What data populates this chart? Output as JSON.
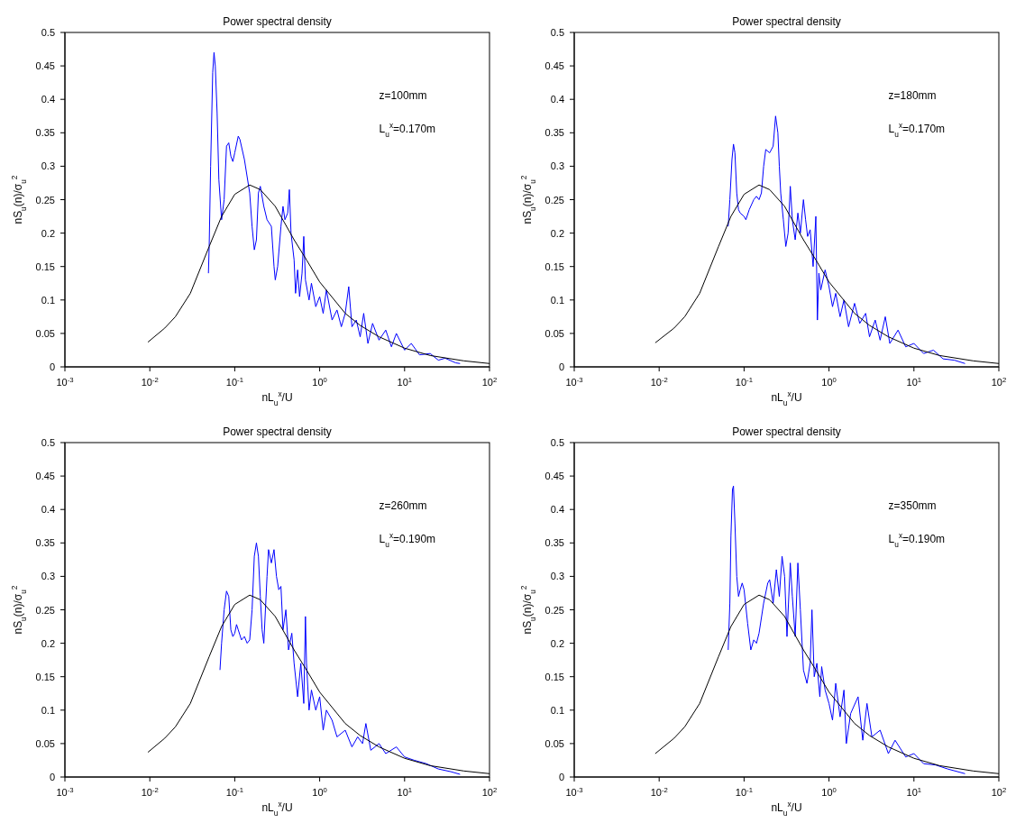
{
  "chart_data": [
    {
      "type": "line",
      "title": "Power spectral density",
      "xlabel": "nL$_{u}$$^{x}$/U",
      "ylabel": "nS$_{u}$(n)/σ$_{u}$$^{2}$",
      "annotations": [
        "z=100mm",
        "L$_{u}$$^{x}$=0.170m"
      ],
      "log": "x",
      "xlim": [
        0.001,
        100
      ],
      "xticks": [
        {
          "value": 0.001,
          "label": "10$^{-3}$"
        },
        {
          "value": 0.01,
          "label": "10$^{-2}$"
        },
        {
          "value": 0.1,
          "label": "10$^{-1}$"
        },
        {
          "value": 1,
          "label": "10$^{0}$"
        },
        {
          "value": 10,
          "label": "10$^{1}$"
        },
        {
          "value": 100,
          "label": "10$^{2}$"
        }
      ],
      "ylim": [
        0,
        0.5
      ],
      "yticks": [
        0,
        0.05,
        0.1,
        0.15,
        0.2,
        0.25,
        0.3,
        0.35,
        0.4,
        0.45,
        0.5
      ],
      "series": [
        {
          "color": "#0000ff",
          "x": [
            0.049,
            0.05,
            0.052,
            0.055,
            0.057,
            0.059,
            0.062,
            0.065,
            0.07,
            0.075,
            0.08,
            0.085,
            0.09,
            0.095,
            0.1,
            0.11,
            0.115,
            0.13,
            0.15,
            0.16,
            0.17,
            0.18,
            0.19,
            0.2,
            0.22,
            0.24,
            0.27,
            0.29,
            0.3,
            0.32,
            0.35,
            0.37,
            0.39,
            0.42,
            0.44,
            0.46,
            0.5,
            0.52,
            0.55,
            0.58,
            0.62,
            0.65,
            0.68,
            0.75,
            0.8,
            0.9,
            1.0,
            1.1,
            1.2,
            1.4,
            1.6,
            1.8,
            2.0,
            2.2,
            2.4,
            2.7,
            3.0,
            3.3,
            3.7,
            4.2,
            5,
            6,
            7,
            8,
            10,
            12,
            15,
            20,
            25,
            30,
            40,
            45
          ],
          "values": [
            0.14,
            0.18,
            0.3,
            0.44,
            0.47,
            0.45,
            0.38,
            0.28,
            0.22,
            0.25,
            0.33,
            0.335,
            0.315,
            0.307,
            0.32,
            0.345,
            0.34,
            0.31,
            0.26,
            0.21,
            0.175,
            0.19,
            0.26,
            0.27,
            0.24,
            0.22,
            0.21,
            0.15,
            0.13,
            0.15,
            0.21,
            0.24,
            0.22,
            0.23,
            0.265,
            0.2,
            0.16,
            0.11,
            0.145,
            0.105,
            0.14,
            0.195,
            0.13,
            0.1,
            0.125,
            0.09,
            0.105,
            0.08,
            0.115,
            0.07,
            0.085,
            0.06,
            0.08,
            0.12,
            0.06,
            0.07,
            0.045,
            0.08,
            0.035,
            0.065,
            0.04,
            0.055,
            0.03,
            0.05,
            0.025,
            0.035,
            0.018,
            0.02,
            0.01,
            0.013,
            0.006,
            0.005
          ]
        },
        {
          "color": "#000000",
          "x": [
            0.0095,
            0.015,
            0.02,
            0.03,
            0.05,
            0.07,
            0.1,
            0.15,
            0.2,
            0.3,
            0.5,
            0.7,
            1,
            2,
            3,
            5,
            10,
            20,
            50,
            100
          ],
          "values": [
            0.037,
            0.058,
            0.075,
            0.11,
            0.18,
            0.225,
            0.258,
            0.272,
            0.265,
            0.24,
            0.19,
            0.16,
            0.127,
            0.08,
            0.062,
            0.045,
            0.028,
            0.017,
            0.009,
            0.005
          ]
        }
      ]
    },
    {
      "type": "line",
      "title": "Power spectral density",
      "xlabel": "nL$_{u}$$^{x}$/U",
      "ylabel": "nS$_{u}$(n)/σ$_{u}$$^{2}$",
      "annotations": [
        "z=180mm",
        "L$_{u}$$^{x}$=0.170m"
      ],
      "log": "x",
      "xlim": [
        0.001,
        100
      ],
      "xticks": [
        {
          "value": 0.001,
          "label": "10$^{-3}$"
        },
        {
          "value": 0.01,
          "label": "10$^{-2}$"
        },
        {
          "value": 0.1,
          "label": "10$^{-1}$"
        },
        {
          "value": 1,
          "label": "10$^{0}$"
        },
        {
          "value": 10,
          "label": "10$^{1}$"
        },
        {
          "value": 100,
          "label": "10$^{2}$"
        }
      ],
      "ylim": [
        0,
        0.5
      ],
      "yticks": [
        0,
        0.05,
        0.1,
        0.15,
        0.2,
        0.25,
        0.3,
        0.35,
        0.4,
        0.45,
        0.5
      ],
      "series": [
        {
          "color": "#0000ff",
          "x": [
            0.065,
            0.068,
            0.072,
            0.075,
            0.078,
            0.082,
            0.086,
            0.09,
            0.1,
            0.105,
            0.115,
            0.13,
            0.14,
            0.15,
            0.16,
            0.17,
            0.18,
            0.2,
            0.22,
            0.235,
            0.25,
            0.26,
            0.27,
            0.29,
            0.31,
            0.33,
            0.35,
            0.37,
            0.4,
            0.43,
            0.46,
            0.5,
            0.53,
            0.56,
            0.6,
            0.65,
            0.7,
            0.73,
            0.76,
            0.8,
            0.9,
            1.0,
            1.1,
            1.2,
            1.35,
            1.5,
            1.7,
            2.0,
            2.3,
            2.7,
            3.0,
            3.5,
            4.0,
            4.6,
            5.2,
            6.5,
            8,
            10,
            13,
            17,
            22,
            30,
            40
          ],
          "values": [
            0.21,
            0.25,
            0.31,
            0.333,
            0.32,
            0.26,
            0.235,
            0.23,
            0.225,
            0.22,
            0.235,
            0.25,
            0.255,
            0.25,
            0.26,
            0.3,
            0.325,
            0.32,
            0.33,
            0.375,
            0.35,
            0.3,
            0.26,
            0.22,
            0.18,
            0.2,
            0.27,
            0.22,
            0.19,
            0.23,
            0.2,
            0.25,
            0.22,
            0.195,
            0.205,
            0.15,
            0.225,
            0.07,
            0.14,
            0.115,
            0.145,
            0.12,
            0.09,
            0.11,
            0.075,
            0.1,
            0.06,
            0.095,
            0.065,
            0.08,
            0.045,
            0.07,
            0.04,
            0.075,
            0.035,
            0.055,
            0.03,
            0.035,
            0.02,
            0.025,
            0.012,
            0.01,
            0.005
          ]
        },
        {
          "color": "#000000",
          "x": [
            0.009,
            0.015,
            0.02,
            0.03,
            0.05,
            0.07,
            0.1,
            0.15,
            0.2,
            0.3,
            0.5,
            0.7,
            1,
            2,
            3,
            5,
            10,
            20,
            50,
            100
          ],
          "values": [
            0.036,
            0.058,
            0.075,
            0.11,
            0.18,
            0.225,
            0.258,
            0.272,
            0.265,
            0.24,
            0.19,
            0.16,
            0.127,
            0.08,
            0.062,
            0.045,
            0.028,
            0.017,
            0.009,
            0.005
          ]
        }
      ]
    },
    {
      "type": "line",
      "title": "Power spectral density",
      "xlabel": "nL$_{u}$$^{x}$/U",
      "ylabel": "nS$_{u}$(n)/σ$_{u}$$^{2}$",
      "annotations": [
        "z=260mm",
        "L$_{u}$$^{x}$=0.190m"
      ],
      "log": "x",
      "xlim": [
        0.001,
        100
      ],
      "xticks": [
        {
          "value": 0.001,
          "label": "10$^{-3}$"
        },
        {
          "value": 0.01,
          "label": "10$^{-2}$"
        },
        {
          "value": 0.1,
          "label": "10$^{-1}$"
        },
        {
          "value": 1,
          "label": "10$^{0}$"
        },
        {
          "value": 10,
          "label": "10$^{1}$"
        },
        {
          "value": 100,
          "label": "10$^{2}$"
        }
      ],
      "ylim": [
        0,
        0.5
      ],
      "yticks": [
        0,
        0.05,
        0.1,
        0.15,
        0.2,
        0.25,
        0.3,
        0.35,
        0.4,
        0.45,
        0.5
      ],
      "series": [
        {
          "color": "#0000ff",
          "x": [
            0.067,
            0.07,
            0.075,
            0.08,
            0.085,
            0.09,
            0.095,
            0.1,
            0.105,
            0.11,
            0.12,
            0.13,
            0.14,
            0.15,
            0.16,
            0.17,
            0.18,
            0.19,
            0.2,
            0.21,
            0.22,
            0.24,
            0.25,
            0.27,
            0.29,
            0.31,
            0.33,
            0.35,
            0.37,
            0.4,
            0.43,
            0.47,
            0.5,
            0.55,
            0.6,
            0.65,
            0.68,
            0.7,
            0.75,
            0.8,
            0.9,
            1.0,
            1.1,
            1.2,
            1.4,
            1.6,
            2.0,
            2.4,
            2.8,
            3.2,
            3.5,
            4,
            5,
            6,
            8,
            10,
            13,
            18,
            25,
            35,
            45
          ],
          "values": [
            0.16,
            0.2,
            0.25,
            0.278,
            0.27,
            0.22,
            0.21,
            0.215,
            0.228,
            0.22,
            0.205,
            0.21,
            0.2,
            0.205,
            0.25,
            0.33,
            0.35,
            0.33,
            0.27,
            0.22,
            0.2,
            0.3,
            0.34,
            0.32,
            0.34,
            0.3,
            0.28,
            0.285,
            0.22,
            0.25,
            0.19,
            0.215,
            0.17,
            0.12,
            0.17,
            0.11,
            0.24,
            0.17,
            0.1,
            0.13,
            0.1,
            0.12,
            0.07,
            0.1,
            0.085,
            0.06,
            0.07,
            0.045,
            0.06,
            0.05,
            0.08,
            0.04,
            0.05,
            0.035,
            0.045,
            0.03,
            0.025,
            0.02,
            0.012,
            0.008,
            0.004
          ]
        },
        {
          "color": "#000000",
          "x": [
            0.0095,
            0.015,
            0.02,
            0.03,
            0.05,
            0.07,
            0.1,
            0.15,
            0.2,
            0.3,
            0.5,
            0.7,
            1,
            2,
            3,
            5,
            10,
            20,
            50,
            100
          ],
          "values": [
            0.037,
            0.058,
            0.075,
            0.11,
            0.18,
            0.225,
            0.258,
            0.272,
            0.265,
            0.24,
            0.19,
            0.16,
            0.127,
            0.08,
            0.062,
            0.045,
            0.028,
            0.017,
            0.009,
            0.005
          ]
        }
      ]
    },
    {
      "type": "line",
      "title": "Power spectral density",
      "xlabel": "nL$_{u}$$^{x}$/U",
      "ylabel": "nS$_{u}$(n)/σ$_{u}$$^{2}$",
      "annotations": [
        "z=350mm",
        "L$_{u}$$^{x}$=0.190m"
      ],
      "log": "x",
      "xlim": [
        0.001,
        100
      ],
      "xticks": [
        {
          "value": 0.001,
          "label": "10$^{-3}$"
        },
        {
          "value": 0.01,
          "label": "10$^{-2}$"
        },
        {
          "value": 0.1,
          "label": "10$^{-1}$"
        },
        {
          "value": 1,
          "label": "10$^{0}$"
        },
        {
          "value": 10,
          "label": "10$^{1}$"
        },
        {
          "value": 100,
          "label": "10$^{2}$"
        }
      ],
      "ylim": [
        0,
        0.5
      ],
      "yticks": [
        0,
        0.05,
        0.1,
        0.15,
        0.2,
        0.25,
        0.3,
        0.35,
        0.4,
        0.45,
        0.5
      ],
      "series": [
        {
          "color": "#0000ff",
          "x": [
            0.065,
            0.068,
            0.07,
            0.073,
            0.075,
            0.078,
            0.082,
            0.086,
            0.09,
            0.095,
            0.1,
            0.11,
            0.12,
            0.13,
            0.14,
            0.15,
            0.17,
            0.19,
            0.2,
            0.22,
            0.24,
            0.26,
            0.28,
            0.3,
            0.32,
            0.35,
            0.37,
            0.4,
            0.43,
            0.46,
            0.5,
            0.55,
            0.6,
            0.63,
            0.67,
            0.72,
            0.78,
            0.82,
            0.9,
            1.0,
            1.1,
            1.2,
            1.35,
            1.5,
            1.6,
            1.8,
            2.2,
            2.5,
            2.8,
            3.2,
            4,
            5,
            6,
            8,
            10,
            13,
            18,
            25,
            40
          ],
          "values": [
            0.19,
            0.26,
            0.36,
            0.43,
            0.435,
            0.38,
            0.3,
            0.27,
            0.28,
            0.29,
            0.28,
            0.23,
            0.19,
            0.205,
            0.2,
            0.215,
            0.26,
            0.29,
            0.295,
            0.26,
            0.31,
            0.27,
            0.33,
            0.3,
            0.21,
            0.32,
            0.27,
            0.21,
            0.32,
            0.25,
            0.16,
            0.14,
            0.17,
            0.25,
            0.15,
            0.17,
            0.12,
            0.165,
            0.13,
            0.11,
            0.085,
            0.14,
            0.09,
            0.13,
            0.05,
            0.095,
            0.12,
            0.055,
            0.11,
            0.06,
            0.07,
            0.035,
            0.055,
            0.03,
            0.035,
            0.02,
            0.018,
            0.012,
            0.005
          ]
        },
        {
          "color": "#000000",
          "x": [
            0.009,
            0.015,
            0.02,
            0.03,
            0.05,
            0.07,
            0.1,
            0.15,
            0.2,
            0.3,
            0.5,
            0.7,
            1,
            2,
            3,
            5,
            10,
            20,
            50,
            100
          ],
          "values": [
            0.035,
            0.058,
            0.075,
            0.11,
            0.18,
            0.225,
            0.258,
            0.272,
            0.265,
            0.24,
            0.19,
            0.16,
            0.127,
            0.08,
            0.062,
            0.045,
            0.028,
            0.017,
            0.009,
            0.005
          ]
        }
      ]
    }
  ]
}
